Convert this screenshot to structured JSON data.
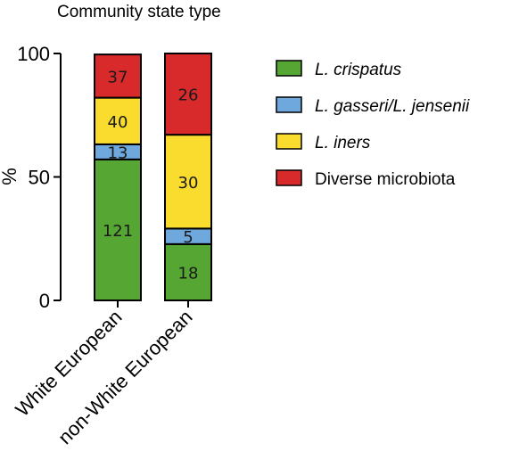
{
  "chart_data": {
    "type": "bar",
    "stacked": true,
    "title": "Community state type",
    "xlabel": "",
    "ylabel": "%",
    "ylim": [
      0,
      100
    ],
    "yticks": [
      "0",
      "50",
      "100"
    ],
    "categories": [
      "White European",
      "non-White European"
    ],
    "series": [
      {
        "name": "L. crispatus",
        "italic": true,
        "color": "#55A632",
        "counts": [
          121,
          18
        ],
        "percent": [
          57.1,
          22.8
        ]
      },
      {
        "name": "L. gasseri/L. jensenii",
        "italic": true,
        "color": "#6FA8DC",
        "counts": [
          13,
          5
        ],
        "percent": [
          6.1,
          6.3
        ]
      },
      {
        "name": "L. iners",
        "italic": true,
        "color": "#F9DC2E",
        "counts": [
          40,
          30
        ],
        "percent": [
          18.9,
          38.0
        ]
      },
      {
        "name": "Diverse microbiota",
        "italic": false,
        "color": "#D8292B",
        "counts": [
          37,
          26
        ],
        "percent": [
          17.5,
          32.9
        ]
      }
    ],
    "legend_position": "right"
  }
}
